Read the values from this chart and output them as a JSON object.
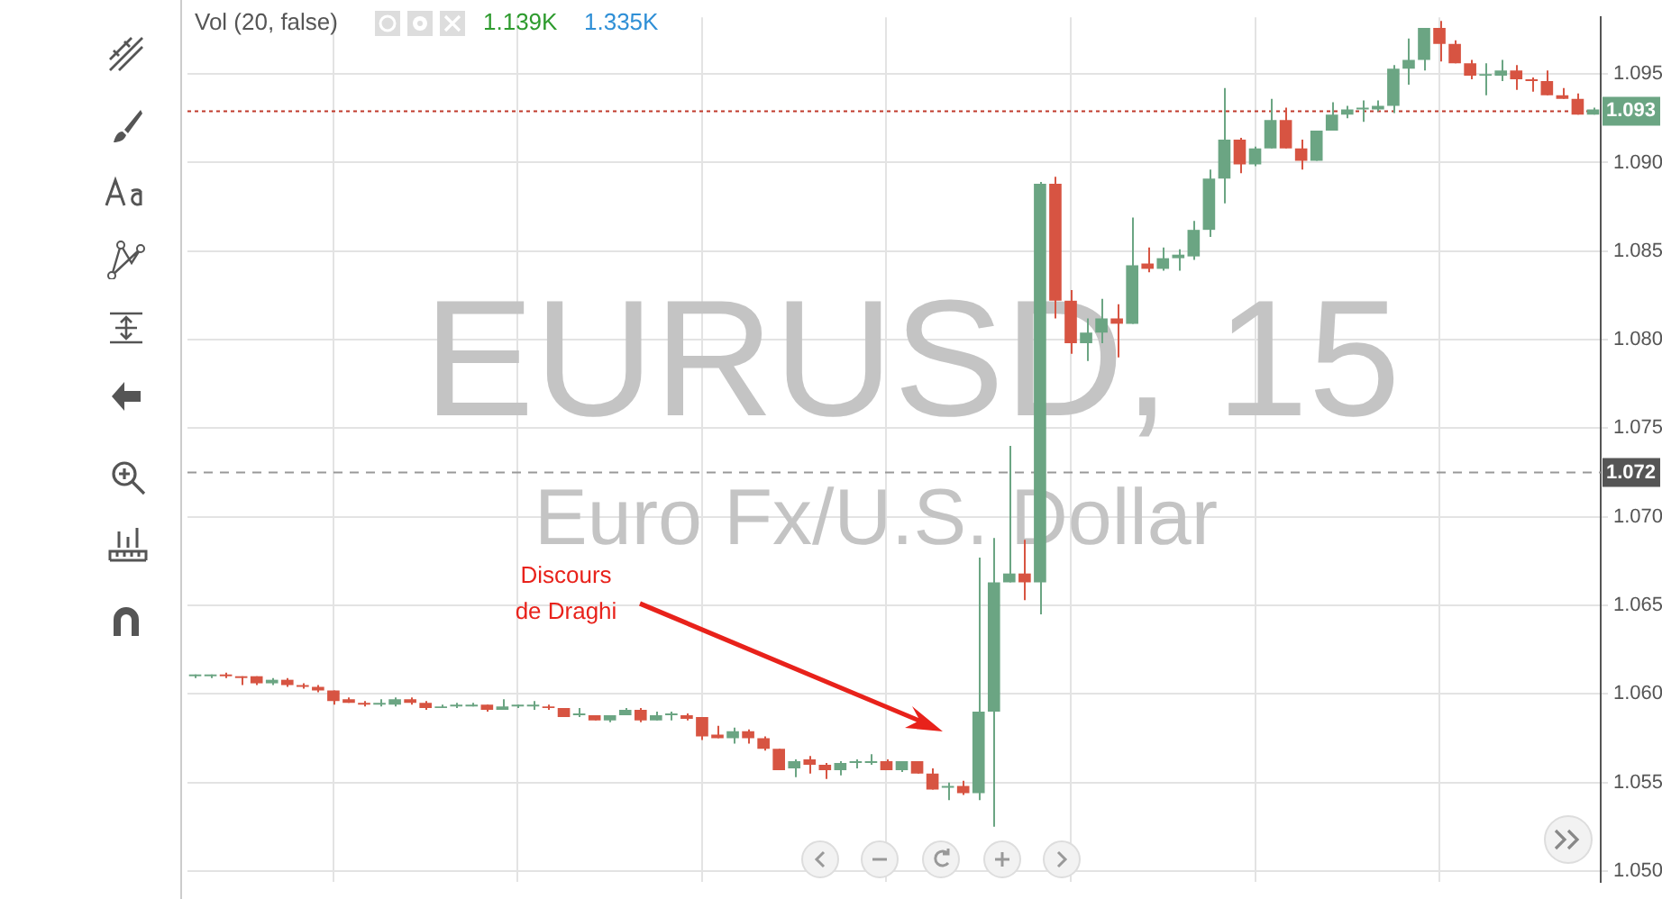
{
  "chart_data": {
    "type": "candlestick",
    "title": "EURUSD, 15",
    "subtitle": "Euro Fx/U.S. Dollar",
    "categories": [
      null,
      null,
      null,
      null,
      null,
      null,
      null,
      null,
      null,
      null,
      null,
      null,
      null,
      null,
      null,
      null,
      null,
      null,
      null,
      null,
      null,
      null,
      null,
      null,
      null,
      null,
      null,
      null,
      null,
      null,
      null,
      null,
      null,
      null,
      null,
      null,
      null,
      null,
      null,
      null,
      null,
      null,
      null,
      null,
      null,
      null,
      null,
      null,
      null,
      null,
      null,
      null,
      null,
      null,
      null,
      null,
      null,
      null,
      null,
      null,
      null,
      null,
      null,
      null,
      null,
      null,
      null,
      null,
      null,
      null,
      null,
      null,
      null,
      null,
      null,
      null,
      null,
      null,
      null,
      null,
      null,
      null,
      null,
      null,
      null,
      null,
      null,
      null,
      null,
      null,
      null,
      null
    ],
    "ohlc": [
      [
        1.061,
        1.0611,
        1.0609,
        1.0611
      ],
      [
        1.061,
        1.0611,
        1.0609,
        1.0611
      ],
      [
        1.0611,
        1.0612,
        1.0609,
        1.061
      ],
      [
        1.061,
        1.061,
        1.0605,
        1.0609
      ],
      [
        1.061,
        1.061,
        1.0605,
        1.0606
      ],
      [
        1.0606,
        1.0609,
        1.0605,
        1.0608
      ],
      [
        1.0608,
        1.0609,
        1.0604,
        1.0605
      ],
      [
        1.0605,
        1.0606,
        1.0603,
        1.0604
      ],
      [
        1.0604,
        1.0605,
        1.0601,
        1.0602
      ],
      [
        1.0602,
        1.0602,
        1.0594,
        1.0596
      ],
      [
        1.0597,
        1.0598,
        1.0595,
        1.0595
      ],
      [
        1.0595,
        1.0596,
        1.0593,
        1.0594
      ],
      [
        1.0594,
        1.0597,
        1.0593,
        1.0595
      ],
      [
        1.0594,
        1.0598,
        1.0593,
        1.0597
      ],
      [
        1.0597,
        1.0598,
        1.0594,
        1.0595
      ],
      [
        1.0595,
        1.0596,
        1.0591,
        1.0592
      ],
      [
        1.0592,
        1.0594,
        1.0592,
        1.0593
      ],
      [
        1.0593,
        1.0595,
        1.0592,
        1.0594
      ],
      [
        1.0593,
        1.0595,
        1.0593,
        1.0594
      ],
      [
        1.0594,
        1.0594,
        1.059,
        1.0591
      ],
      [
        1.0591,
        1.0597,
        1.0591,
        1.0593
      ],
      [
        1.0593,
        1.0594,
        1.0592,
        1.0594
      ],
      [
        1.0593,
        1.0596,
        1.0591,
        1.0594
      ],
      [
        1.0593,
        1.0594,
        1.0591,
        1.0592
      ],
      [
        1.0592,
        1.0592,
        1.0587,
        1.0587
      ],
      [
        1.0588,
        1.0592,
        1.0587,
        1.0589
      ],
      [
        1.0588,
        1.0588,
        1.0585,
        1.0585
      ],
      [
        1.0585,
        1.0588,
        1.0584,
        1.0588
      ],
      [
        1.0588,
        1.0592,
        1.0588,
        1.0591
      ],
      [
        1.0591,
        1.0592,
        1.0584,
        1.0585
      ],
      [
        1.0585,
        1.059,
        1.0585,
        1.0588
      ],
      [
        1.0588,
        1.059,
        1.0585,
        1.0589
      ],
      [
        1.0588,
        1.0589,
        1.0585,
        1.0586
      ],
      [
        1.0587,
        1.0587,
        1.0574,
        1.0576
      ],
      [
        1.0577,
        1.0582,
        1.0575,
        1.0575
      ],
      [
        1.0575,
        1.0581,
        1.0572,
        1.0579
      ],
      [
        1.0579,
        1.058,
        1.0572,
        1.0575
      ],
      [
        1.0575,
        1.0576,
        1.0568,
        1.0569
      ],
      [
        1.0569,
        1.0569,
        1.0557,
        1.0557
      ],
      [
        1.0558,
        1.0563,
        1.0553,
        1.0562
      ],
      [
        1.0563,
        1.0565,
        1.0555,
        1.056
      ],
      [
        1.056,
        1.0561,
        1.0552,
        1.0557
      ],
      [
        1.0557,
        1.0562,
        1.0554,
        1.0561
      ],
      [
        1.0561,
        1.0563,
        1.0558,
        1.0562
      ],
      [
        1.0561,
        1.0566,
        1.056,
        1.0562
      ],
      [
        1.0562,
        1.0563,
        1.0557,
        1.0557
      ],
      [
        1.0557,
        1.0562,
        1.0556,
        1.0562
      ],
      [
        1.0562,
        1.0562,
        1.0555,
        1.0555
      ],
      [
        1.0555,
        1.0558,
        1.0546,
        1.0546
      ],
      [
        1.0547,
        1.055,
        1.054,
        1.0548
      ],
      [
        1.0548,
        1.0551,
        1.0543,
        1.0544
      ],
      [
        1.0544,
        1.0677,
        1.054,
        1.059
      ],
      [
        1.059,
        1.0688,
        1.0525,
        1.0663
      ],
      [
        1.0663,
        1.074,
        1.0663,
        1.0668
      ],
      [
        1.0668,
        1.0687,
        1.0653,
        1.0663
      ],
      [
        1.0663,
        1.0889,
        1.0645,
        1.0888
      ],
      [
        1.0888,
        1.0892,
        1.0812,
        1.0822
      ],
      [
        1.0822,
        1.0828,
        1.0792,
        1.0798
      ],
      [
        1.0798,
        1.0812,
        1.0788,
        1.0804
      ],
      [
        1.0804,
        1.0823,
        1.0798,
        1.0812
      ],
      [
        1.0812,
        1.082,
        1.079,
        1.0809
      ],
      [
        1.0809,
        1.0869,
        1.0809,
        1.0842
      ],
      [
        1.0843,
        1.0852,
        1.0838,
        1.084
      ],
      [
        1.084,
        1.0852,
        1.0839,
        1.0846
      ],
      [
        1.0846,
        1.0851,
        1.0839,
        1.0848
      ],
      [
        1.0847,
        1.0867,
        1.0845,
        1.0862
      ],
      [
        1.0862,
        1.0896,
        1.0858,
        1.0891
      ],
      [
        1.0891,
        1.0942,
        1.0877,
        1.0913
      ],
      [
        1.0913,
        1.0914,
        1.0894,
        1.0899
      ],
      [
        1.0899,
        1.0909,
        1.0898,
        1.0908
      ],
      [
        1.0908,
        1.0936,
        1.0908,
        1.0924
      ],
      [
        1.0924,
        1.0931,
        1.0908,
        1.0908
      ],
      [
        1.0908,
        1.0913,
        1.0896,
        1.0901
      ],
      [
        1.0901,
        1.0918,
        1.0901,
        1.0918
      ],
      [
        1.0918,
        1.0934,
        1.0918,
        1.0927
      ],
      [
        1.0927,
        1.0932,
        1.0925,
        1.093
      ],
      [
        1.093,
        1.0935,
        1.0923,
        1.0931
      ],
      [
        1.093,
        1.0935,
        1.0929,
        1.0932
      ],
      [
        1.0932,
        1.0955,
        1.0928,
        1.0953
      ],
      [
        1.0953,
        1.097,
        1.0944,
        1.0958
      ],
      [
        1.0958,
        1.0976,
        1.0952,
        1.0976
      ],
      [
        1.0976,
        1.098,
        1.0957,
        1.0967
      ],
      [
        1.0967,
        1.0969,
        1.0956,
        1.0956
      ],
      [
        1.0956,
        1.0958,
        1.0947,
        1.0949
      ],
      [
        1.0949,
        1.0956,
        1.0938,
        1.095
      ],
      [
        1.0949,
        1.0958,
        1.0946,
        1.0952
      ],
      [
        1.0952,
        1.0955,
        1.0941,
        1.0947
      ],
      [
        1.0947,
        1.0948,
        1.094,
        1.0946
      ],
      [
        1.0946,
        1.0952,
        1.0938,
        1.0938
      ],
      [
        1.0938,
        1.0942,
        1.0936,
        1.0936
      ],
      [
        1.0936,
        1.0939,
        1.0927,
        1.0927
      ],
      [
        1.0927,
        1.0931,
        1.0927,
        1.093
      ]
    ],
    "colors": [
      "#6ba583",
      "#6ba583",
      "#d75442",
      "#d75442",
      "#d75442",
      "#6ba583",
      "#d75442",
      "#d75442",
      "#d75442",
      "#d75442",
      "#d75442",
      "#d75442",
      "#6ba583",
      "#6ba583",
      "#d75442",
      "#d75442",
      "#6ba583",
      "#6ba583",
      "#6ba583",
      "#d75442",
      "#6ba583",
      "#6ba583",
      "#6ba583",
      "#d75442",
      "#d75442",
      "#6ba583",
      "#d75442",
      "#6ba583",
      "#6ba583",
      "#d75442",
      "#6ba583",
      "#6ba583",
      "#d75442",
      "#d75442",
      "#d75442",
      "#6ba583",
      "#d75442",
      "#d75442",
      "#d75442",
      "#6ba583",
      "#d75442",
      "#d75442",
      "#6ba583",
      "#6ba583",
      "#6ba583",
      "#d75442",
      "#6ba583",
      "#d75442",
      "#d75442",
      "#6ba583",
      "#d75442",
      "#6ba583",
      "#6ba583",
      "#6ba583",
      "#d75442",
      "#6ba583",
      "#d75442",
      "#d75442",
      "#6ba583",
      "#6ba583",
      "#d75442",
      "#6ba583",
      "#d75442",
      "#6ba583",
      "#6ba583",
      "#6ba583",
      "#6ba583",
      "#6ba583",
      "#d75442",
      "#6ba583",
      "#6ba583",
      "#d75442",
      "#d75442",
      "#6ba583",
      "#6ba583",
      "#6ba583",
      "#6ba583",
      "#6ba583",
      "#6ba583",
      "#6ba583",
      "#6ba583",
      "#d75442",
      "#d75442",
      "#d75442",
      "#6ba583",
      "#6ba583",
      "#d75442",
      "#d75442",
      "#d75442",
      "#d75442",
      "#d75442",
      "#6ba583"
    ],
    "ylim": [
      1.0494,
      1.0982
    ],
    "yticks": [
      {
        "value": 1.05,
        "label": "1.050"
      },
      {
        "value": 1.055,
        "label": "1.055"
      },
      {
        "value": 1.06,
        "label": "1.060"
      },
      {
        "value": 1.065,
        "label": "1.065"
      },
      {
        "value": 1.07,
        "label": "1.070"
      },
      {
        "value": 1.075,
        "label": "1.075"
      },
      {
        "value": 1.08,
        "label": "1.080"
      },
      {
        "value": 1.085,
        "label": "1.085"
      },
      {
        "value": 1.09,
        "label": "1.090"
      },
      {
        "value": 1.095,
        "label": "1.095"
      }
    ],
    "grid": true,
    "ref_lines": [
      {
        "axis": "y",
        "value": 1.0929,
        "label": "1.093",
        "color": "#c0392b",
        "line_style": "dotted"
      },
      {
        "axis": "y",
        "value": 1.0725,
        "label": "1.072",
        "color": "#999999",
        "line_style": "dashed"
      }
    ],
    "annotations": [
      "Vol (20, false)",
      "1.139K",
      "1.335K",
      "Discours\nde Draghi"
    ]
  }
}
